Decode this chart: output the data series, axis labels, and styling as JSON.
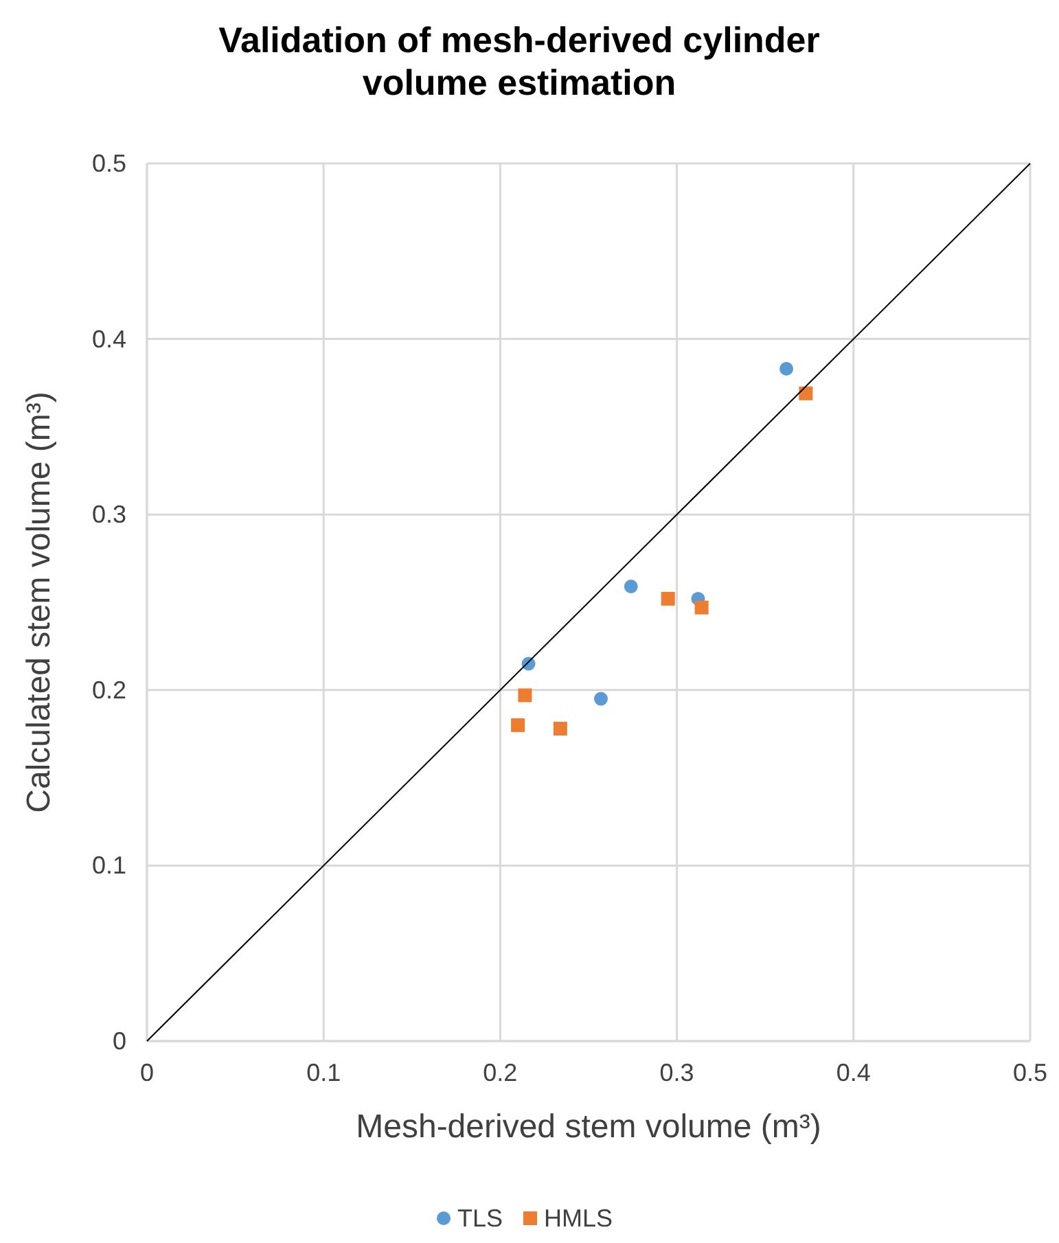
{
  "chart_data": {
    "type": "scatter",
    "title": "Validation of mesh-derived cylinder volume estimation",
    "xlabel": "Mesh-derived stem volume (m³)",
    "ylabel": "Calculated stem volume (m³)",
    "xlim": [
      0,
      0.5
    ],
    "ylim": [
      0,
      0.5
    ],
    "xticks": [
      0,
      0.1,
      0.2,
      0.3,
      0.4,
      0.5
    ],
    "yticks": [
      0,
      0.1,
      0.2,
      0.3,
      0.4,
      0.5
    ],
    "grid": true,
    "legend": "bottom",
    "series": [
      {
        "name": "TLS",
        "color": "#5b9bd5",
        "marker": "circle",
        "x": [
          0.216,
          0.257,
          0.274,
          0.312,
          0.362
        ],
        "values": [
          0.215,
          0.195,
          0.259,
          0.252,
          0.383
        ]
      },
      {
        "name": "HMLS",
        "color": "#ed7d31",
        "marker": "square",
        "x": [
          0.21,
          0.214,
          0.234,
          0.295,
          0.314,
          0.373
        ],
        "values": [
          0.18,
          0.197,
          0.178,
          0.252,
          0.247,
          0.369
        ]
      },
      {
        "type": "line",
        "color": "#000000",
        "marker": "none",
        "x": [
          0,
          0.5
        ],
        "values": [
          0,
          0.5
        ]
      }
    ]
  }
}
